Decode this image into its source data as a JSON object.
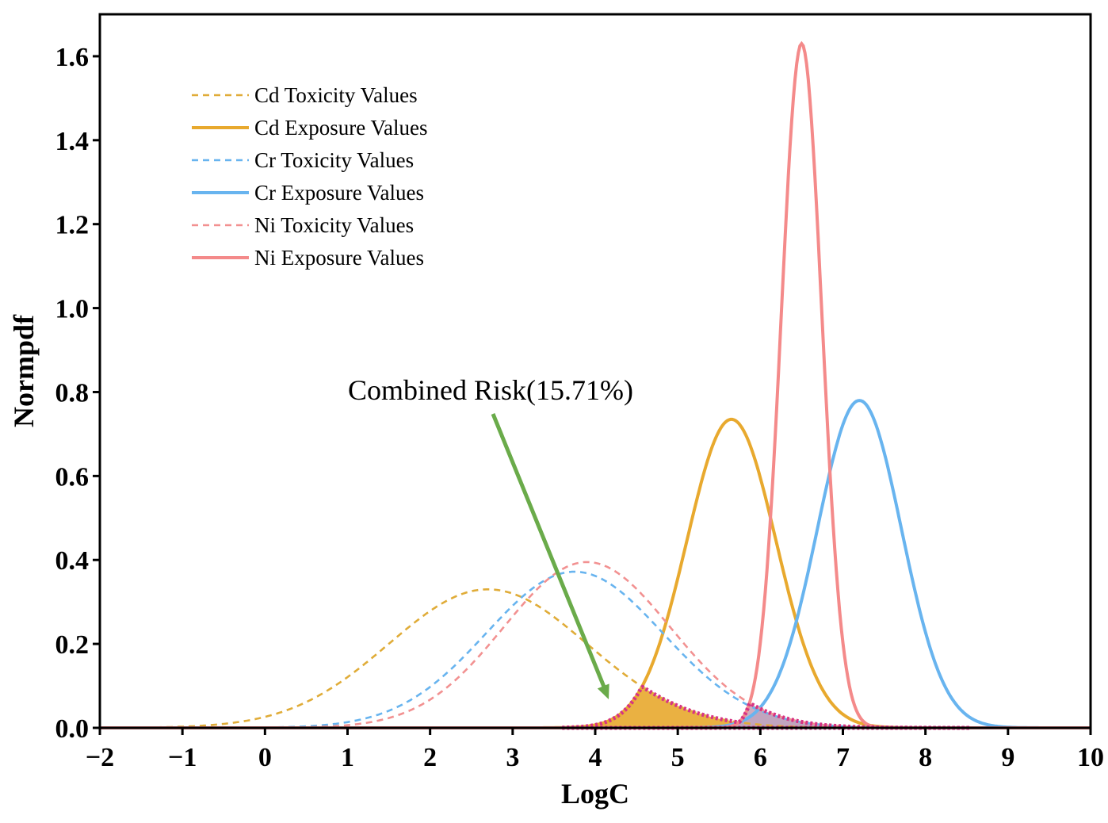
{
  "chart_data": {
    "type": "line",
    "xlabel": "LogC",
    "ylabel": "Normpdf",
    "xlim": [
      -2,
      10
    ],
    "ylim": [
      0,
      1.7
    ],
    "x_ticks": [
      -2,
      -1,
      0,
      1,
      2,
      3,
      4,
      5,
      6,
      7,
      8,
      9,
      10
    ],
    "x_tick_labels": [
      "−2",
      "−1",
      "0",
      "1",
      "2",
      "3",
      "4",
      "5",
      "6",
      "7",
      "8",
      "9",
      "10"
    ],
    "y_ticks": [
      0,
      0.2,
      0.4,
      0.6,
      0.8,
      1.0,
      1.2,
      1.4,
      1.6
    ],
    "y_tick_labels": [
      "0.0",
      "0.2",
      "0.4",
      "0.6",
      "0.8",
      "1.0",
      "1.2",
      "1.4",
      "1.6"
    ],
    "grid": false,
    "legend_position": "top-left",
    "series": [
      {
        "name": "Cd Toxicity Values",
        "color": "#e0ac38",
        "dash": "dashed",
        "distribution": "normal",
        "mean": 2.7,
        "std": 1.2,
        "peak": 0.33
      },
      {
        "name": "Cd Exposure Values",
        "color": "#e8a92e",
        "dash": "solid",
        "distribution": "normal",
        "mean": 5.65,
        "std": 0.54,
        "peak": 0.735
      },
      {
        "name": "Cr Toxicity Values",
        "color": "#68b4ef",
        "dash": "dashed",
        "distribution": "normal",
        "mean": 3.75,
        "std": 1.07,
        "peak": 0.372
      },
      {
        "name": "Cr Exposure Values",
        "color": "#68b4ef",
        "dash": "solid",
        "distribution": "normal",
        "mean": 7.2,
        "std": 0.51,
        "peak": 0.78
      },
      {
        "name": "Ni Toxicity Values",
        "color": "#f29191",
        "dash": "dashed",
        "distribution": "normal",
        "mean": 3.9,
        "std": 1.01,
        "peak": 0.395
      },
      {
        "name": "Ni Exposure Values",
        "color": "#f48a8a",
        "dash": "solid",
        "distribution": "normal",
        "mean": 6.5,
        "std": 0.245,
        "peak": 1.63
      }
    ],
    "annotations": [
      {
        "text": "Combined Risk(15.71%)",
        "arrow_from": [
          3.3,
          0.75
        ],
        "arrow_to": [
          4.15,
          0.06
        ],
        "arrow_color": "#6aab4a"
      }
    ],
    "shaded_regions": [
      {
        "between": [
          "Cd Toxicity Values",
          "Cd Exposure Values"
        ],
        "fill": "#e8a92e"
      },
      {
        "between": [
          "Cr Toxicity Values",
          "Cr Exposure Values"
        ],
        "fill": "#68b4ef"
      },
      {
        "between": [
          "Ni Toxicity Values",
          "Ni Exposure Values"
        ],
        "fill": "#c9a3b8"
      }
    ],
    "combined_outline_color": "#d63384"
  }
}
